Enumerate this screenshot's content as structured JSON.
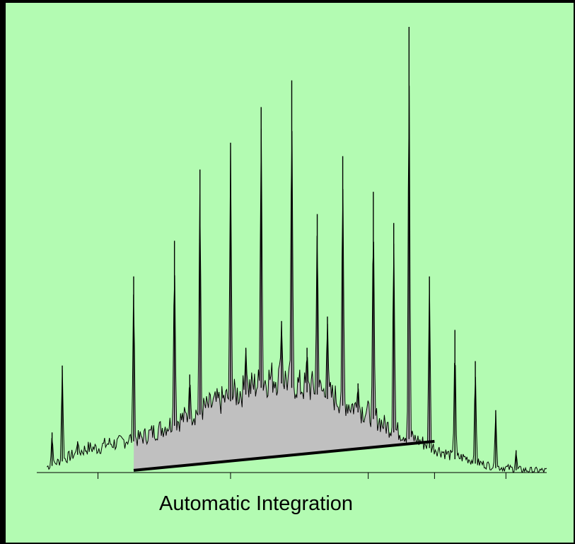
{
  "chart_data": {
    "type": "line",
    "title": "",
    "caption": "Automatic Integration",
    "xlabel": "",
    "ylabel": "",
    "xlim": [
      0,
      100
    ],
    "ylim": [
      0,
      100
    ],
    "grid": false,
    "legend": "none",
    "x_tick_marks": [
      12,
      38,
      65,
      78,
      92
    ],
    "colors": {
      "background": "#b3fbb2",
      "trace": "#000000",
      "integrated_area": "#c0c0c0",
      "baseline": "#000000",
      "frame": "#000000"
    },
    "background_trace": {
      "description_points": [
        [
          2,
          1
        ],
        [
          4,
          2
        ],
        [
          6,
          3
        ],
        [
          8,
          4
        ],
        [
          10,
          5
        ],
        [
          12,
          5
        ],
        [
          14,
          6
        ],
        [
          16,
          6
        ],
        [
          18,
          7
        ],
        [
          20,
          7
        ],
        [
          22,
          8
        ],
        [
          24,
          9
        ],
        [
          26,
          10
        ],
        [
          28,
          11
        ],
        [
          30,
          12
        ],
        [
          32,
          13
        ],
        [
          34,
          14
        ],
        [
          36,
          15
        ],
        [
          38,
          16
        ],
        [
          40,
          17
        ],
        [
          42,
          18
        ],
        [
          44,
          19
        ],
        [
          46,
          20
        ],
        [
          48,
          20
        ],
        [
          50,
          19
        ],
        [
          52,
          18
        ],
        [
          54,
          18
        ],
        [
          56,
          17
        ],
        [
          58,
          16
        ],
        [
          60,
          15
        ],
        [
          62,
          14
        ],
        [
          64,
          13
        ],
        [
          66,
          12
        ],
        [
          68,
          10
        ],
        [
          70,
          9
        ],
        [
          72,
          8
        ],
        [
          74,
          7
        ],
        [
          76,
          6
        ],
        [
          78,
          5
        ],
        [
          80,
          4
        ],
        [
          82,
          3
        ],
        [
          84,
          3
        ],
        [
          86,
          2
        ],
        [
          88,
          1.5
        ],
        [
          90,
          1
        ],
        [
          92,
          0.8
        ],
        [
          94,
          0.5
        ],
        [
          96,
          0.3
        ],
        [
          98,
          0.2
        ],
        [
          100,
          0.2
        ]
      ]
    },
    "peaks": [
      {
        "x": 3,
        "y": 9
      },
      {
        "x": 5,
        "y": 24
      },
      {
        "x": 8,
        "y": 7
      },
      {
        "x": 19,
        "y": 44
      },
      {
        "x": 27,
        "y": 52
      },
      {
        "x": 30,
        "y": 22
      },
      {
        "x": 32,
        "y": 68
      },
      {
        "x": 38,
        "y": 74
      },
      {
        "x": 41,
        "y": 28
      },
      {
        "x": 44,
        "y": 82
      },
      {
        "x": 48,
        "y": 34
      },
      {
        "x": 50,
        "y": 88
      },
      {
        "x": 53,
        "y": 28
      },
      {
        "x": 55,
        "y": 58
      },
      {
        "x": 57,
        "y": 35
      },
      {
        "x": 60,
        "y": 71
      },
      {
        "x": 63,
        "y": 20
      },
      {
        "x": 66,
        "y": 63
      },
      {
        "x": 70,
        "y": 56
      },
      {
        "x": 73,
        "y": 100
      },
      {
        "x": 77,
        "y": 44
      },
      {
        "x": 82,
        "y": 32
      },
      {
        "x": 86,
        "y": 25
      },
      {
        "x": 90,
        "y": 14
      },
      {
        "x": 94,
        "y": 5
      }
    ],
    "integration_window": {
      "x_start": 19,
      "x_end": 78,
      "baseline_start_y": 0.5,
      "baseline_end_y": 7
    }
  }
}
